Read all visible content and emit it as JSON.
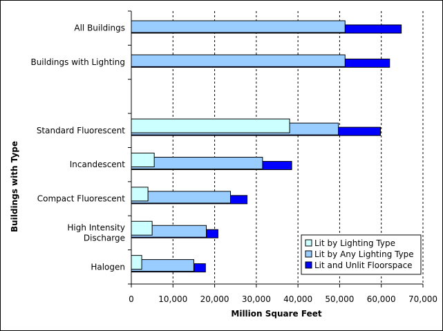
{
  "chart_data": {
    "type": "bar",
    "orientation": "horizontal",
    "xlabel": "Million Square Feet",
    "ylabel": "Buildings with Type",
    "xlim": [
      0,
      70000
    ],
    "xticks": [
      0,
      10000,
      20000,
      30000,
      40000,
      50000,
      60000,
      70000
    ],
    "xtick_labels": [
      "0",
      "10,000",
      "20,000",
      "30,000",
      "40,000",
      "50,000",
      "60,000",
      "70,000"
    ],
    "grid": "vertical dashed",
    "legend_position": "bottom-right",
    "categories": [
      [
        "All Buildings"
      ],
      [
        "Buildings with Lighting"
      ],
      [
        ""
      ],
      [
        "Standard Fluorescent"
      ],
      [
        "Incandescent"
      ],
      [
        "Compact Fluorescent"
      ],
      [
        "High Intensity",
        "Discharge"
      ],
      [
        "Halogen"
      ]
    ],
    "series": [
      {
        "name": "Lit and Unlit Floorspace",
        "color": "#0000ff",
        "values": [
          64800,
          62000,
          null,
          59800,
          38500,
          27800,
          20800,
          17800
        ]
      },
      {
        "name": "Lit by Any Lighting Type",
        "color": "#99ccff",
        "values": [
          51300,
          51300,
          null,
          49700,
          31500,
          23800,
          18000,
          15000
        ]
      },
      {
        "name": "Lit by Lighting Type",
        "color": "#ccffff",
        "values": [
          null,
          null,
          null,
          38000,
          5500,
          4000,
          5000,
          2500
        ]
      }
    ]
  }
}
